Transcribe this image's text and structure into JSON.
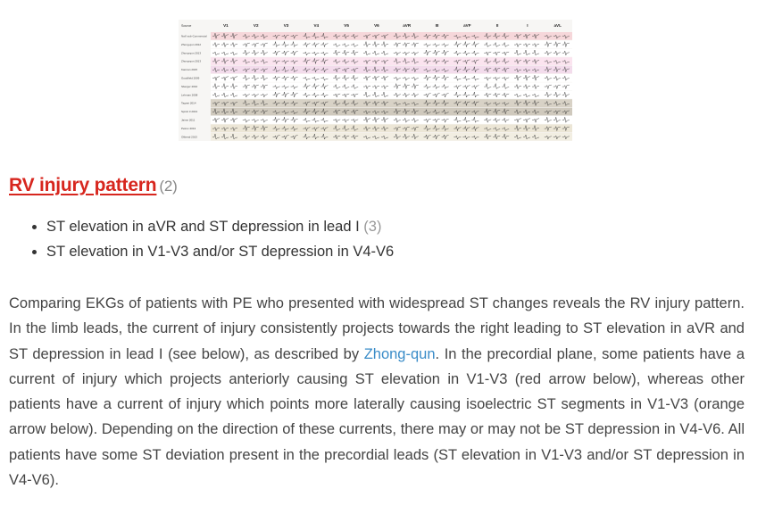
{
  "figure": {
    "column_header_label": "Source",
    "leads": [
      "V1",
      "V2",
      "V3",
      "V4",
      "V5",
      "V6",
      "aVR",
      "III",
      "aVF",
      "II",
      "I",
      "aVL"
    ],
    "rows": [
      "Nat'l sub-Commercial",
      "Zhong-qun 2012",
      "Zhong-qun 2013",
      "Zhong-qun 2013",
      "Kamran 2015",
      "Goodfield 2009",
      "Sberger 2010",
      "Lehman 2008",
      "Tagnet 2014",
      "Sprott 3 2013",
      "Jaime 2011",
      "Petrov 2013",
      "Oliberal 2013"
    ]
  },
  "section": {
    "title": "RV injury pattern",
    "title_ref": "(2)",
    "bullets": [
      {
        "text": "ST elevation in aVR and ST depression in lead I",
        "ref": "(3)"
      },
      {
        "text": "ST elevation in V1-V3 and/or ST depression in V4-V6",
        "ref": ""
      }
    ],
    "paragraph": {
      "part1": "Comparing EKGs of patients with PE who presented with widespread ST changes reveals the RV injury pattern.   In the limb leads, the current of injury consistently projects towards the right leading to ST elevation in aVR and ST depression in lead I (see below), as described by ",
      "link": "Zhong-qun",
      "part2": ".   In the precordial plane, some patients have a current of injury which projects anteriorly causing ST elevation in V1-V3 (red arrow below), whereas other patients have a current of injury which points more laterally causing isoelectric ST segments in V1-V3 (orange arrow below).   Depending on the direction of these currents, there may or may not be ST depression in V4-V6.   All patients have some ST deviation present in the precordial leads (ST elevation in V1-V3 and/or ST depression in V4-V6)."
    }
  },
  "colors": {
    "heading_link": "#d7261e",
    "ref": "#888888",
    "body_link": "#3a8cc8",
    "text": "#444444"
  }
}
